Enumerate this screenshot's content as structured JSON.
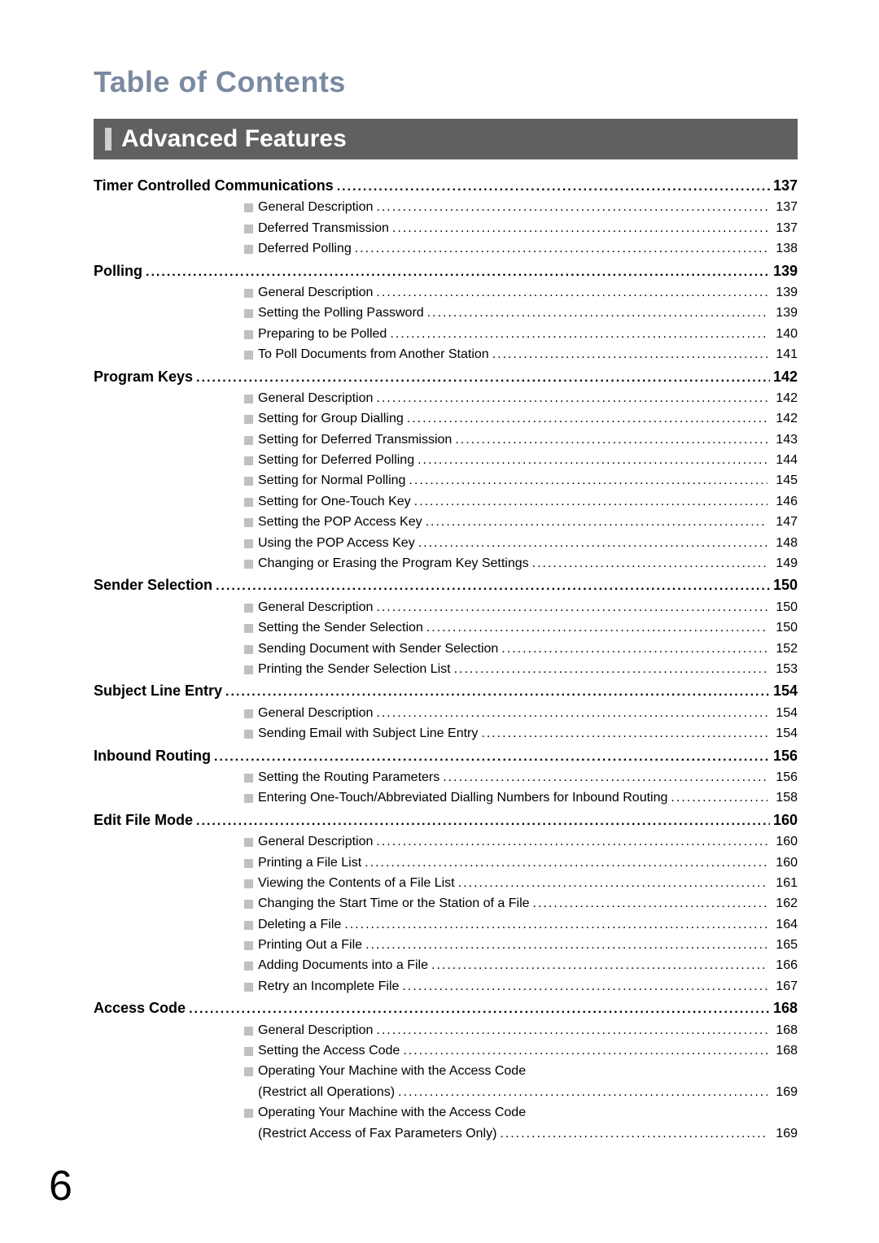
{
  "title_color": "#7a8aa0",
  "banner_bg": "#606060",
  "banner_bar": "#d0d0d0",
  "bullet_color": "#c0c0c0",
  "page_title": "Table of Contents",
  "banner_text": "Advanced Features",
  "page_number": "6",
  "sections": [
    {
      "label": "Timer Controlled Communications",
      "page": "137",
      "subs": [
        {
          "label": "General Description",
          "page": "137"
        },
        {
          "label": "Deferred Transmission",
          "page": "137"
        },
        {
          "label": "Deferred Polling",
          "page": "138"
        }
      ]
    },
    {
      "label": "Polling",
      "page": "139",
      "subs": [
        {
          "label": "General Description",
          "page": "139"
        },
        {
          "label": "Setting the Polling Password",
          "page": "139"
        },
        {
          "label": "Preparing to be Polled",
          "page": "140"
        },
        {
          "label": "To Poll Documents from Another Station",
          "page": "141"
        }
      ]
    },
    {
      "label": "Program Keys",
      "page": "142",
      "subs": [
        {
          "label": "General Description",
          "page": "142"
        },
        {
          "label": "Setting for Group Dialling",
          "page": "142"
        },
        {
          "label": "Setting for Deferred Transmission",
          "page": "143"
        },
        {
          "label": "Setting for Deferred Polling",
          "page": "144"
        },
        {
          "label": "Setting for Normal Polling",
          "page": "145"
        },
        {
          "label": "Setting for One-Touch Key",
          "page": "146"
        },
        {
          "label": "Setting the POP Access Key",
          "page": "147"
        },
        {
          "label": "Using the POP Access Key",
          "page": "148"
        },
        {
          "label": "Changing or Erasing the Program Key Settings",
          "page": "149"
        }
      ]
    },
    {
      "label": "Sender Selection",
      "page": "150",
      "subs": [
        {
          "label": "General Description",
          "page": "150"
        },
        {
          "label": "Setting the Sender Selection",
          "page": "150"
        },
        {
          "label": "Sending Document with Sender Selection",
          "page": "152"
        },
        {
          "label": "Printing the Sender Selection List",
          "page": "153"
        }
      ]
    },
    {
      "label": "Subject Line Entry",
      "page": "154",
      "subs": [
        {
          "label": "General Description",
          "page": "154"
        },
        {
          "label": "Sending Email with Subject Line Entry",
          "page": "154"
        }
      ]
    },
    {
      "label": "Inbound Routing",
      "page": "156",
      "subs": [
        {
          "label": "Setting the Routing Parameters",
          "page": "156"
        },
        {
          "label": "Entering One-Touch/Abbreviated Dialling Numbers for Inbound Routing",
          "page": "158"
        }
      ]
    },
    {
      "label": "Edit File Mode",
      "page": "160",
      "subs": [
        {
          "label": "General Description",
          "page": "160"
        },
        {
          "label": "Printing a File List",
          "page": "160"
        },
        {
          "label": "Viewing the Contents of a File List",
          "page": "161"
        },
        {
          "label": "Changing the Start Time or the Station of a File",
          "page": "162"
        },
        {
          "label": "Deleting a File",
          "page": "164"
        },
        {
          "label": "Printing Out a File",
          "page": "165"
        },
        {
          "label": "Adding Documents into a File",
          "page": "166"
        },
        {
          "label": "Retry an Incomplete File",
          "page": "167"
        }
      ]
    },
    {
      "label": "Access Code",
      "page": "168",
      "subs": [
        {
          "label": "General Description",
          "page": "168"
        },
        {
          "label": "Setting the Access Code",
          "page": "168"
        },
        {
          "label": "Operating Your Machine with the Access Code",
          "label2": "(Restrict all Operations)",
          "page": "169"
        },
        {
          "label": "Operating Your Machine with the Access Code",
          "label2": "(Restrict Access of Fax Parameters Only)",
          "page": "169"
        }
      ]
    }
  ]
}
